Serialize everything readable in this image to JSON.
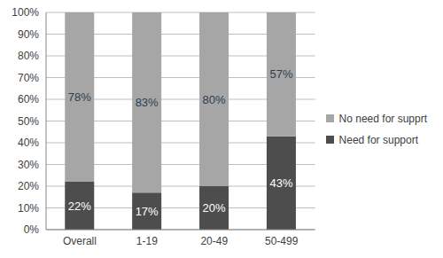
{
  "chart_data": {
    "type": "bar",
    "stacked": true,
    "grid": true,
    "legend": "right",
    "data_labels": true,
    "categories": [
      "Overall",
      "1-19",
      "20-49",
      "50-499"
    ],
    "series": [
      {
        "name": "Need for support",
        "color": "#4d4d4d",
        "values": [
          22,
          17,
          20,
          43
        ],
        "value_labels": [
          "22%",
          "17%",
          "20%",
          "43%"
        ]
      },
      {
        "name": "No need for supprt",
        "color": "#a6a6a6",
        "values": [
          78,
          83,
          80,
          57
        ],
        "value_labels": [
          "78%",
          "83%",
          "80%",
          "57%"
        ]
      }
    ],
    "ylim": [
      0,
      100
    ],
    "yticks": [
      {
        "value": 0,
        "label": "0%"
      },
      {
        "value": 10,
        "label": "10%"
      },
      {
        "value": 20,
        "label": "20%"
      },
      {
        "value": 30,
        "label": "30%"
      },
      {
        "value": 40,
        "label": "40%"
      },
      {
        "value": 50,
        "label": "50%"
      },
      {
        "value": 60,
        "label": "60%"
      },
      {
        "value": 70,
        "label": "70%"
      },
      {
        "value": 80,
        "label": "80%"
      },
      {
        "value": 90,
        "label": "90%"
      },
      {
        "value": 100,
        "label": "100%"
      }
    ]
  }
}
